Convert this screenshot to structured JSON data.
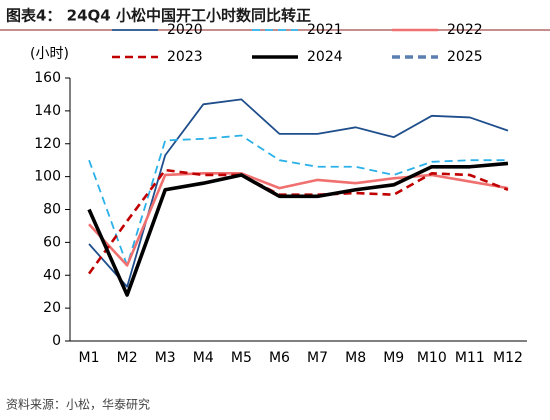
{
  "chart_data": {
    "type": "line",
    "title": "图表4：  24Q4 小松中国开工小时数同比转正",
    "y_label": "(小时)",
    "source": "资料来源：小松，华泰研究",
    "categories": [
      "M1",
      "M2",
      "M3",
      "M4",
      "M5",
      "M6",
      "M7",
      "M8",
      "M9",
      "M10",
      "M11",
      "M12"
    ],
    "series": [
      {
        "name": "2020",
        "color": "#1f4e8c",
        "dashed": false,
        "line_width": 1.8,
        "values": [
          59,
          33,
          113,
          144,
          147,
          126,
          126,
          130,
          124,
          137,
          136,
          128
        ]
      },
      {
        "name": "2021",
        "color": "#2ab0e8",
        "dashed": true,
        "line_width": 1.8,
        "values": [
          110,
          46,
          122,
          123,
          125,
          110,
          106,
          106,
          101,
          109,
          110,
          110
        ]
      },
      {
        "name": "2022",
        "color": "#f07070",
        "dashed": false,
        "line_width": 2.6,
        "values": [
          71,
          46,
          101,
          102,
          102,
          93,
          98,
          96,
          99,
          101,
          97,
          93
        ]
      },
      {
        "name": "2023",
        "color": "#c00000",
        "dashed": true,
        "line_width": 2.6,
        "values": [
          41,
          73,
          104,
          101,
          101,
          89,
          89,
          90,
          89,
          102,
          101,
          92
        ]
      },
      {
        "name": "2024",
        "color": "#000000",
        "dashed": false,
        "line_width": 3.6,
        "values": [
          80,
          28,
          92,
          96,
          101,
          88,
          88,
          92,
          95,
          106,
          106,
          108
        ]
      },
      {
        "name": "2025",
        "color": "#5b7fb0",
        "dashed": true,
        "line_width": 3.6,
        "values": [
          null,
          null,
          null,
          null,
          null,
          null,
          null,
          null,
          null,
          null,
          null,
          null
        ]
      }
    ],
    "ylim": [
      0,
      160
    ],
    "yticks": [
      0,
      20,
      40,
      60,
      80,
      100,
      120,
      140,
      160
    ],
    "grid": false
  }
}
